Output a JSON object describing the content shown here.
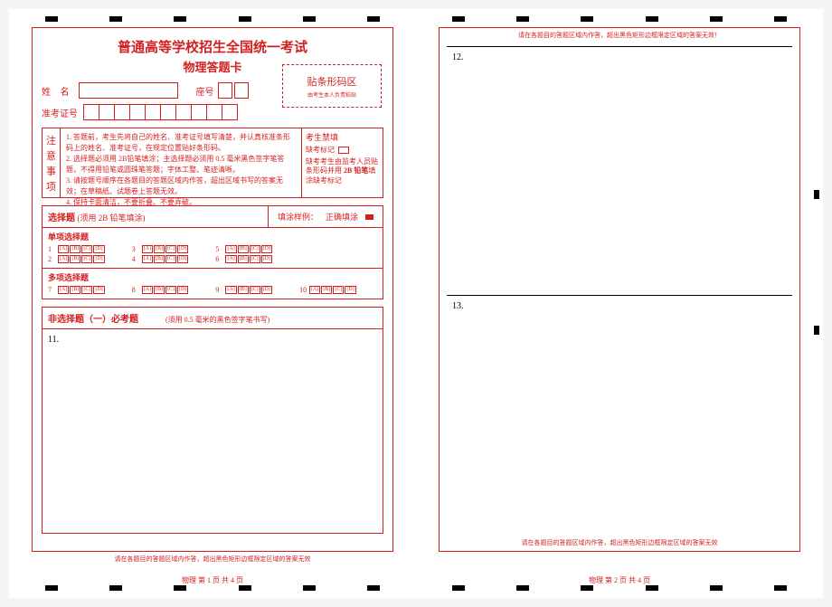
{
  "header": {
    "title": "普通高等学校招生全国统一考试",
    "subtitle": "物理答题卡"
  },
  "info": {
    "name_label": "姓 名",
    "seat_label": "座号",
    "examid_label": "准考证号",
    "seat_count": 2,
    "examid_count": 10
  },
  "barcode": {
    "title": "贴条形码区",
    "sub": "由考生本人负责粘贴"
  },
  "notice": {
    "label": [
      "注",
      "意",
      "事",
      "项"
    ],
    "lines": [
      "1. 答题前，考生先将自己的姓名、准考证号填写清楚，并认真核准条形码上的姓名、准考证号，在规定位置贴好条形码。",
      "2. 选择题必须用 2B铅笔填涂；主选择题必须用 0.5 毫米黑色签字笔答题，不得用铅笔或圆珠笔答题；字体工整、笔迹清晰。",
      "3. 请按题号顺序在各题目的答题区域内作答，超出区域书写的答案无效；在草稿纸、试题卷上答题无效。",
      "4. 保持卡面清洁，不要折叠、不要弄破。"
    ]
  },
  "forbid": {
    "title": "考生禁填",
    "absent": "缺考标记",
    "note_l1": "缺考考生由监考人员贴条形码并用",
    "note_b": "2B 铅笔",
    "note_l2": "填涂缺考标记"
  },
  "choice": {
    "title": "选择题",
    "title_sub": "(须用 2B 铅笔填涂)",
    "demo_label": "填涂样例：",
    "demo_correct": "正确填涂",
    "single_title": "单项选择题",
    "multi_title": "多项选择题",
    "options": [
      "A",
      "B",
      "C",
      "D"
    ],
    "single_rows": [
      [
        1,
        3,
        5
      ],
      [
        2,
        4,
        6
      ]
    ],
    "multi_rows": [
      [
        7,
        8,
        9,
        10
      ]
    ]
  },
  "essay": {
    "title": "非选择题（一）必考题",
    "sub": "(须用 0.5 毫米的黑色签字笔书写)",
    "q11": "11."
  },
  "page2": {
    "head_warn": "请在各题目的答题区域内作答，超出黑色矩形边框限定区域的答案无效！",
    "q12": "12.",
    "q13": "13."
  },
  "footer": {
    "warn": "请在各题目的答题区域内作答，超出黑色矩形边框限定区域的答案无效",
    "page1": "物理   第 1 页   共 4 页",
    "page2": "物理   第 2 页   共 4 页"
  },
  "colors": {
    "accent": "#d41f1f",
    "black": "#000000"
  }
}
